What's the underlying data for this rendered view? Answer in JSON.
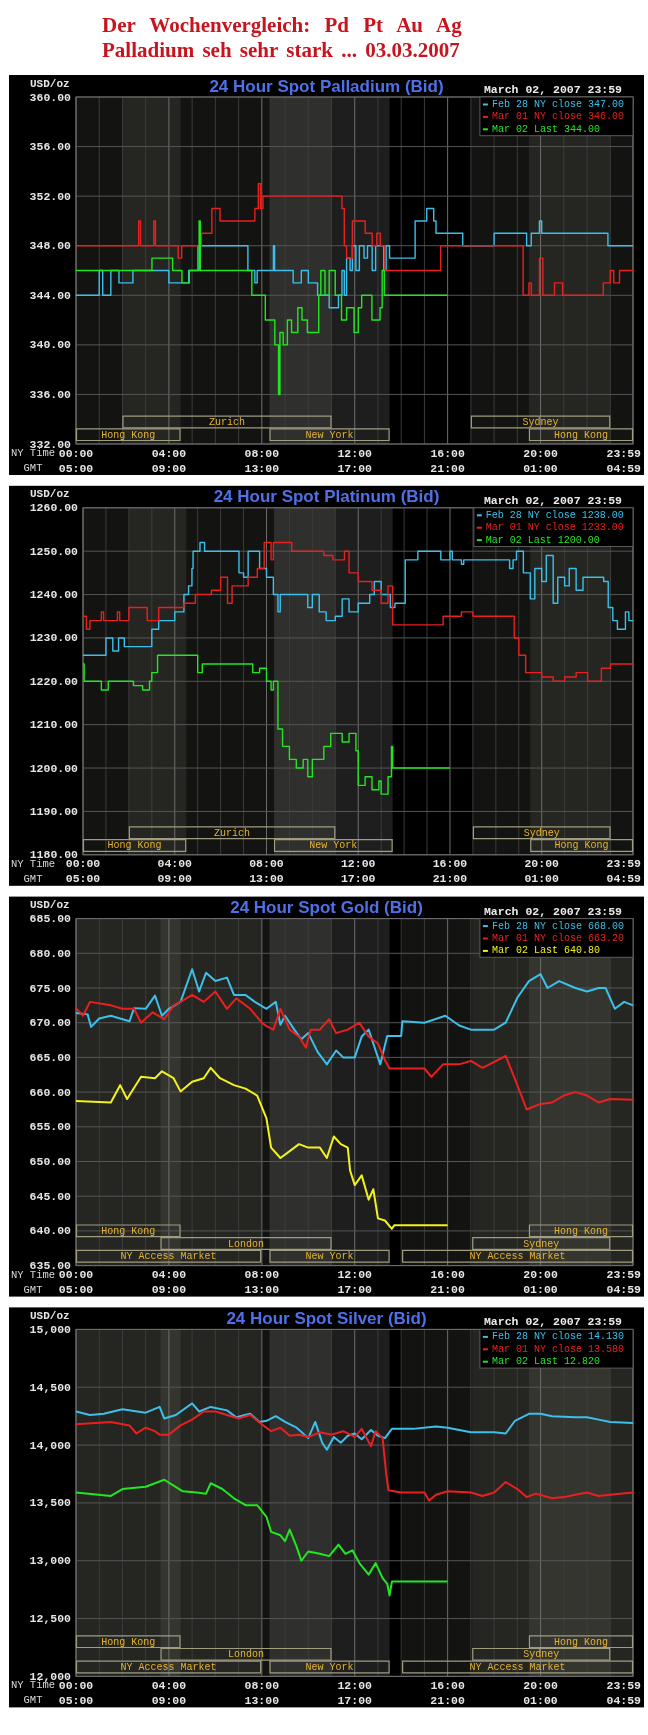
{
  "chart_data": [
    {
      "type": "other",
      "title": "Der Wochenvergleich: Pd Pt Au Ag",
      "subtitle": "Palladium seh sehr stark ... 03.03.2007"
    },
    {
      "type": "step",
      "title": "24 Hour Spot Palladium (Bid)",
      "subtitle": "March 02, 2007 23:59",
      "ylabel": "USD/oz",
      "xlabel": "NY Time",
      "x2label": "GMT",
      "xlim": [
        0,
        23.98
      ],
      "xticks": [
        {
          "value": 0,
          "label": "00:00"
        },
        {
          "value": 1,
          "label": null
        },
        {
          "value": 2,
          "label": null
        },
        {
          "value": 3,
          "label": null
        },
        {
          "value": 4,
          "label": "04:00"
        },
        {
          "value": 5,
          "label": null
        },
        {
          "value": 6,
          "label": null
        },
        {
          "value": 7,
          "label": null
        },
        {
          "value": 8,
          "label": "08:00"
        },
        {
          "value": 9,
          "label": null
        },
        {
          "value": 10,
          "label": null
        },
        {
          "value": 11,
          "label": null
        },
        {
          "value": 12,
          "label": "12:00"
        },
        {
          "value": 13,
          "label": null
        },
        {
          "value": 14,
          "label": null
        },
        {
          "value": 15,
          "label": null
        },
        {
          "value": 16,
          "label": "16:00"
        },
        {
          "value": 17,
          "label": null
        },
        {
          "value": 18,
          "label": null
        },
        {
          "value": 19,
          "label": null
        },
        {
          "value": 20,
          "label": "20:00"
        },
        {
          "value": 21,
          "label": null
        },
        {
          "value": 22,
          "label": null
        },
        {
          "value": 23,
          "label": null
        },
        {
          "value": 23.98,
          "label": "23:59"
        }
      ],
      "x2lim": [
        "2007-03-02T05:00",
        "2007-03-03T04:59"
      ],
      "x2ticks": [
        {
          "value": "2007-03-02T05:00",
          "label": "05:00"
        },
        {
          "value": "2007-03-02T09:00",
          "label": "09:00"
        },
        {
          "value": "2007-03-02T13:00",
          "label": "13:00"
        },
        {
          "value": "2007-03-02T17:00",
          "label": "17:00"
        },
        {
          "value": "2007-03-02T21:00",
          "label": "21:00"
        },
        {
          "value": "2007-03-03T01:00",
          "label": "01:00"
        },
        {
          "value": "2007-03-03T04:59",
          "label": "04:59"
        }
      ],
      "ylim": [
        332,
        360
      ],
      "yticks": [
        {
          "value": 332,
          "label": "332.00"
        },
        {
          "value": 336,
          "label": "336.00"
        },
        {
          "value": 340,
          "label": "340.00"
        },
        {
          "value": 344,
          "label": "344.00"
        },
        {
          "value": 348,
          "label": "348.00"
        },
        {
          "value": 352,
          "label": "352.00"
        },
        {
          "value": 356,
          "label": "356.00"
        },
        {
          "value": 360,
          "label": "360.00"
        }
      ],
      "grid": true,
      "legend": "top right",
      "bands": [
        {
          "axis": "x",
          "from": 0,
          "to": 4.5,
          "label": "Hong Kong",
          "color": "#131311"
        },
        {
          "axis": "x",
          "from": 2,
          "to": 11,
          "label": "Zurich",
          "color": "#131311"
        },
        {
          "axis": "x",
          "from": 8.33,
          "to": 13.5,
          "label": "New York",
          "color": "#1e1e1e"
        },
        {
          "axis": "x",
          "from": 19.5,
          "to": 23.98,
          "label": "Hong Kong",
          "color": "#131311"
        },
        {
          "axis": "x",
          "from": 17,
          "to": 23,
          "label": "Sydney",
          "color": "#131311"
        }
      ],
      "series": [
        {
          "name": "Feb 28 NY close 347.00",
          "color": "#3cc0ea",
          "x": [
            0,
            1.0,
            1.15,
            1.5,
            1.85,
            2.45,
            4.0,
            4.85,
            5.25,
            7.4,
            7.7,
            7.8,
            8.5,
            8.55,
            9.35,
            9.7,
            10.0,
            10.4,
            10.9,
            11.3,
            11.45,
            11.55,
            11.65,
            11.8,
            11.9,
            12.05,
            12.2,
            12.4,
            12.55,
            12.75,
            12.9,
            13.25,
            13.35,
            13.5,
            14.6,
            15.1,
            15.4,
            15.5,
            16.65,
            18.0,
            19.4,
            19.6,
            19.95,
            20.05,
            22.9,
            23.98
          ],
          "values": [
            344,
            346,
            344,
            346,
            345,
            346,
            345,
            346,
            348,
            346,
            345,
            346,
            348,
            346,
            345,
            346,
            345,
            344,
            343,
            344,
            346,
            344,
            347,
            346,
            348,
            346,
            348,
            347,
            348,
            346,
            348,
            346,
            348,
            347,
            350,
            351,
            350,
            349,
            348,
            349,
            348,
            349,
            350,
            349,
            348,
            348
          ]
        },
        {
          "name": "Mar 01 NY close 346.00",
          "color": "#e82020",
          "x": [
            0,
            2.7,
            2.78,
            3.35,
            3.42,
            4.4,
            4.55,
            5.4,
            5.85,
            6.2,
            7.7,
            7.85,
            7.95,
            8.05,
            11.45,
            11.55,
            11.65,
            11.9,
            12.45,
            12.75,
            12.95,
            13.1,
            13.3,
            15.7,
            19.25,
            19.5,
            19.6,
            19.95,
            20.1,
            20.6,
            20.95,
            22.7,
            23.0,
            23.15,
            23.4,
            23.98
          ],
          "values": [
            348,
            350,
            348,
            350,
            348,
            347,
            348,
            349,
            351,
            350,
            351,
            353,
            351,
            352,
            351,
            348,
            347,
            350,
            349,
            348,
            349,
            348,
            346,
            348,
            344,
            345,
            344,
            347,
            344,
            345,
            344,
            345,
            346,
            345,
            346,
            346
          ]
        },
        {
          "name": "Mar 02 Last 344.00",
          "color": "#22e622",
          "x": [
            0,
            3.27,
            4.16,
            4.56,
            4.88,
            5.3,
            5.35,
            7.57,
            8.15,
            8.56,
            8.72,
            8.78,
            8.92,
            9.1,
            9.28,
            9.55,
            9.73,
            9.96,
            10.45,
            10.54,
            10.72,
            10.9,
            11.16,
            11.43,
            11.65,
            11.97,
            12.15,
            12.3,
            12.74,
            13.09,
            13.18,
            13.27,
            16.0
          ],
          "values": [
            346,
            347,
            346,
            345,
            346,
            350,
            346,
            344,
            342,
            340,
            336,
            341,
            340,
            342,
            341,
            343,
            342,
            341,
            344,
            346,
            344,
            346,
            344,
            342,
            343,
            341,
            343,
            344,
            342,
            343,
            346,
            344,
            344
          ]
        }
      ]
    },
    {
      "type": "step",
      "title": "24 Hour Spot Platinum (Bid)",
      "subtitle": "March 02, 2007 23:59",
      "ylabel": "USD/oz",
      "xlabel": "NY Time",
      "x2label": "GMT",
      "xlim": [
        0,
        23.98
      ],
      "xticks": [
        {
          "value": 0,
          "label": "00:00"
        },
        {
          "value": 1,
          "label": null
        },
        {
          "value": 2,
          "label": null
        },
        {
          "value": 3,
          "label": null
        },
        {
          "value": 4,
          "label": "04:00"
        },
        {
          "value": 5,
          "label": null
        },
        {
          "value": 6,
          "label": null
        },
        {
          "value": 7,
          "label": null
        },
        {
          "value": 8,
          "label": "08:00"
        },
        {
          "value": 9,
          "label": null
        },
        {
          "value": 10,
          "label": null
        },
        {
          "value": 11,
          "label": null
        },
        {
          "value": 12,
          "label": "12:00"
        },
        {
          "value": 13,
          "label": null
        },
        {
          "value": 14,
          "label": null
        },
        {
          "value": 15,
          "label": null
        },
        {
          "value": 16,
          "label": "16:00"
        },
        {
          "value": 17,
          "label": null
        },
        {
          "value": 18,
          "label": null
        },
        {
          "value": 19,
          "label": null
        },
        {
          "value": 20,
          "label": "20:00"
        },
        {
          "value": 21,
          "label": null
        },
        {
          "value": 22,
          "label": null
        },
        {
          "value": 23,
          "label": null
        },
        {
          "value": 23.98,
          "label": "23:59"
        }
      ],
      "x2lim": [
        "2007-03-02T05:00",
        "2007-03-03T04:59"
      ],
      "x2ticks": [
        {
          "value": "2007-03-02T05:00",
          "label": "05:00"
        },
        {
          "value": "2007-03-02T09:00",
          "label": "09:00"
        },
        {
          "value": "2007-03-02T13:00",
          "label": "13:00"
        },
        {
          "value": "2007-03-02T17:00",
          "label": "17:00"
        },
        {
          "value": "2007-03-02T21:00",
          "label": "21:00"
        },
        {
          "value": "2007-03-03T01:00",
          "label": "01:00"
        },
        {
          "value": "2007-03-03T04:59",
          "label": "04:59"
        }
      ],
      "ylim": [
        1180,
        1260
      ],
      "yticks": [
        {
          "value": 1180,
          "label": "1180.00"
        },
        {
          "value": 1190,
          "label": "1190.00"
        },
        {
          "value": 1200,
          "label": "1200.00"
        },
        {
          "value": 1210,
          "label": "1210.00"
        },
        {
          "value": 1220,
          "label": "1220.00"
        },
        {
          "value": 1230,
          "label": "1230.00"
        },
        {
          "value": 1240,
          "label": "1240.00"
        },
        {
          "value": 1250,
          "label": "1250.00"
        },
        {
          "value": 1260,
          "label": "1260.00"
        }
      ],
      "grid": true,
      "legend": "top right",
      "bands": [
        {
          "axis": "x",
          "from": 0,
          "to": 4.5,
          "label": "Hong Kong",
          "color": "#131311"
        },
        {
          "axis": "x",
          "from": 2,
          "to": 11,
          "label": "Zurich",
          "color": "#131311"
        },
        {
          "axis": "x",
          "from": 8.33,
          "to": 13.5,
          "label": "New York",
          "color": "#1e1e1e"
        },
        {
          "axis": "x",
          "from": 19.5,
          "to": 23.98,
          "label": "Hong Kong",
          "color": "#131311"
        },
        {
          "axis": "x",
          "from": 17,
          "to": 23,
          "label": "Sydney",
          "color": "#131311"
        }
      ],
      "series": [
        {
          "name": "Feb 28 NY close 1238.00",
          "color": "#3cc0ea",
          "x": [
            0,
            1,
            1.3,
            1.55,
            1.8,
            3,
            3.3,
            4,
            4.4,
            4.6,
            4.75,
            4.8,
            5.1,
            5.3,
            6.8,
            7,
            7.2,
            7.7,
            8,
            8.3,
            8.5,
            8.6,
            9.8,
            10,
            10.3,
            10.6,
            11,
            11.3,
            11.6,
            12,
            12.5,
            12.7,
            13,
            13.4,
            13.6,
            14.05,
            14.6,
            15.6,
            16,
            16.1,
            16.5,
            16.6,
            18.6,
            18.75,
            18.9,
            19.2,
            19.5,
            19.7,
            20,
            20.2,
            20.5,
            20.7,
            21,
            21.2,
            21.5,
            21.8,
            22.7,
            22.9,
            23.1,
            23.3,
            23.65,
            23.8,
            23.98
          ],
          "values": [
            1226,
            1230,
            1227,
            1230,
            1228,
            1232,
            1234,
            1236,
            1240,
            1242,
            1246,
            1250,
            1252,
            1250,
            1245,
            1244,
            1250,
            1246,
            1244,
            1240,
            1236,
            1240,
            1237,
            1240,
            1236,
            1234,
            1235,
            1239,
            1236,
            1238,
            1240,
            1243,
            1240,
            1237,
            1238,
            1248,
            1250,
            1248,
            1250,
            1248,
            1247,
            1248,
            1246,
            1248,
            1250,
            1245,
            1239,
            1246,
            1243,
            1249,
            1238,
            1244,
            1242,
            1246,
            1241,
            1244,
            1243,
            1237,
            1234,
            1232,
            1236,
            1234,
            1234
          ]
        },
        {
          "name": "Mar 01 NY close 1233.00",
          "color": "#e82020",
          "x": [
            0,
            0.15,
            0.3,
            0.8,
            0.9,
            1.5,
            1.6,
            2,
            2.8,
            3.3,
            4.4,
            4.9,
            5.6,
            6,
            6.3,
            6.5,
            7.2,
            7.6,
            7.9,
            8.2,
            8.3,
            9.1,
            10.5,
            10.9,
            11.4,
            11.6,
            12,
            12.6,
            13,
            13.3,
            13.5,
            15.7,
            16.5,
            17,
            18.8,
            19,
            19.3,
            20,
            20.5,
            21,
            21.5,
            22,
            22.6,
            23,
            23.98
          ],
          "values": [
            1235,
            1232,
            1234,
            1236,
            1234,
            1236,
            1234,
            1237,
            1234,
            1237,
            1238,
            1240,
            1241,
            1244,
            1238,
            1242,
            1244,
            1246,
            1252,
            1248,
            1252,
            1250,
            1249,
            1248,
            1250,
            1245,
            1243,
            1241,
            1238,
            1242,
            1233,
            1235,
            1236,
            1235,
            1230,
            1226,
            1222,
            1221,
            1220,
            1221,
            1222,
            1220,
            1223,
            1224,
            1224
          ]
        },
        {
          "name": "Mar 02 Last 1200.00",
          "color": "#22e622",
          "x": [
            0,
            0.05,
            0.8,
            1.1,
            2.2,
            2.6,
            2.9,
            3,
            3.25,
            4.8,
            5,
            5.2,
            7.4,
            7.7,
            8,
            8.2,
            8.3,
            8.5,
            8.7,
            9,
            9.3,
            9.6,
            9.8,
            10,
            10.5,
            10.8,
            11.3,
            11.6,
            11.9,
            12,
            12.3,
            12.6,
            12.9,
            13,
            13.3,
            13.45,
            13.5,
            16
          ],
          "values": [
            1224,
            1220,
            1218,
            1220,
            1219,
            1218,
            1220,
            1222,
            1226,
            1226,
            1222,
            1224,
            1222,
            1223,
            1220,
            1218,
            1220,
            1209,
            1205,
            1202,
            1200,
            1202,
            1198,
            1202,
            1205,
            1208,
            1206,
            1208,
            1204,
            1196,
            1198,
            1195,
            1197,
            1194,
            1198,
            1205,
            1200,
            1200
          ]
        }
      ]
    },
    {
      "type": "line",
      "title": "24 Hour Spot Gold (Bid)",
      "subtitle": "March 02, 2007 23:59",
      "ylabel": "USD/oz",
      "xlabel": "NY Time",
      "x2label": "GMT",
      "xlim": [
        0,
        23.98
      ],
      "xticks": [
        {
          "value": 0,
          "label": "00:00"
        },
        {
          "value": 1,
          "label": null
        },
        {
          "value": 2,
          "label": null
        },
        {
          "value": 3,
          "label": null
        },
        {
          "value": 4,
          "label": "04:00"
        },
        {
          "value": 5,
          "label": null
        },
        {
          "value": 6,
          "label": null
        },
        {
          "value": 7,
          "label": null
        },
        {
          "value": 8,
          "label": "08:00"
        },
        {
          "value": 9,
          "label": null
        },
        {
          "value": 10,
          "label": null
        },
        {
          "value": 11,
          "label": null
        },
        {
          "value": 12,
          "label": "12:00"
        },
        {
          "value": 13,
          "label": null
        },
        {
          "value": 14,
          "label": null
        },
        {
          "value": 15,
          "label": null
        },
        {
          "value": 16,
          "label": "16:00"
        },
        {
          "value": 17,
          "label": null
        },
        {
          "value": 18,
          "label": null
        },
        {
          "value": 19,
          "label": null
        },
        {
          "value": 20,
          "label": "20:00"
        },
        {
          "value": 21,
          "label": null
        },
        {
          "value": 22,
          "label": null
        },
        {
          "value": 23,
          "label": null
        },
        {
          "value": 23.98,
          "label": "23:59"
        }
      ],
      "x2lim": [
        "2007-03-02T05:00",
        "2007-03-03T04:59"
      ],
      "x2ticks": [
        {
          "value": "2007-03-02T05:00",
          "label": "05:00"
        },
        {
          "value": "2007-03-02T09:00",
          "label": "09:00"
        },
        {
          "value": "2007-03-02T13:00",
          "label": "13:00"
        },
        {
          "value": "2007-03-02T17:00",
          "label": "17:00"
        },
        {
          "value": "2007-03-02T21:00",
          "label": "21:00"
        },
        {
          "value": "2007-03-03T01:00",
          "label": "01:00"
        },
        {
          "value": "2007-03-03T04:59",
          "label": "04:59"
        }
      ],
      "ylim": [
        635,
        685
      ],
      "yticks": [
        {
          "value": 635,
          "label": "635.00"
        },
        {
          "value": 640,
          "label": "640.00"
        },
        {
          "value": 645,
          "label": "645.00"
        },
        {
          "value": 650,
          "label": "650.00"
        },
        {
          "value": 655,
          "label": "655.00"
        },
        {
          "value": 660,
          "label": "660.00"
        },
        {
          "value": 665,
          "label": "665.00"
        },
        {
          "value": 670,
          "label": "670.00"
        },
        {
          "value": 675,
          "label": "675.00"
        },
        {
          "value": 680,
          "label": "680.00"
        },
        {
          "value": 685,
          "label": "685.00"
        }
      ],
      "grid": true,
      "legend": "top right",
      "bands": [
        {
          "axis": "x",
          "from": 0,
          "to": 7.97,
          "label": "NY Access Market",
          "color": "#131311"
        },
        {
          "axis": "x",
          "from": 8.33,
          "to": 13.5,
          "label": "New York",
          "color": "#1e1e1e"
        },
        {
          "axis": "x",
          "from": 14.04,
          "to": 23.98,
          "label": "NY Access Market",
          "color": "#131311"
        },
        {
          "axis": "x",
          "from": 3.64,
          "to": 11,
          "label": "London",
          "color": "#131311"
        },
        {
          "axis": "x",
          "from": 17.06,
          "to": 23,
          "label": "Sydney",
          "color": "#131311"
        },
        {
          "axis": "x",
          "from": 0,
          "to": 4.5,
          "label": "Hong Kong",
          "color": "#131311"
        },
        {
          "axis": "x",
          "from": 19.5,
          "to": 23.98,
          "label": "Hong Kong",
          "color": "#131311"
        }
      ],
      "series": [
        {
          "name": "Feb 28 NY close 668.00",
          "color": "#3cc0ea",
          "x": [
            0,
            0.5,
            0.65,
            1,
            1.5,
            2.3,
            2.5,
            3,
            3.4,
            3.7,
            4,
            4.5,
            5,
            5.3,
            5.6,
            6,
            6.5,
            6.8,
            7.3,
            7.7,
            8.2,
            8.6,
            8.8,
            9,
            9.4,
            9.7,
            10,
            10.4,
            10.8,
            11.2,
            11.5,
            12,
            12.3,
            12.6,
            12.9,
            13.1,
            13.4,
            14,
            14.05,
            15,
            15.9,
            16.5,
            17,
            18,
            18.5,
            19,
            19.5,
            20,
            20.3,
            20.8,
            21.5,
            22,
            22.5,
            22.8,
            23.2,
            23.6,
            23.98
          ],
          "values": [
            671.4,
            671.2,
            669.4,
            670.6,
            671,
            670.2,
            672.1,
            672,
            673.9,
            671,
            672,
            673,
            677.7,
            674.5,
            677.2,
            676,
            676.5,
            674,
            674,
            673,
            672,
            673,
            669.7,
            671,
            669,
            667.6,
            668.5,
            665.8,
            664,
            666,
            665,
            665,
            668,
            669,
            666,
            664,
            668.1,
            668.1,
            670.2,
            670,
            671,
            669.6,
            669,
            669,
            670,
            673.6,
            676,
            677,
            675,
            676,
            675,
            674.5,
            675,
            675,
            672,
            673,
            672.5
          ]
        },
        {
          "name": "Mar 01 NY close 663.20",
          "color": "#e82020",
          "x": [
            0,
            0.3,
            0.6,
            1.5,
            2,
            2.5,
            2.8,
            3.3,
            3.8,
            4.2,
            4.5,
            5,
            5.5,
            6,
            6.5,
            6.9,
            7.5,
            8,
            8.2,
            8.5,
            8.8,
            9.2,
            9.6,
            9.9,
            10.1,
            10.5,
            10.9,
            11.2,
            11.7,
            12.2,
            12.6,
            13,
            13.3,
            13.5,
            15,
            15.3,
            15.8,
            16.5,
            17,
            17.5,
            17.8,
            18.5,
            19,
            19.4,
            20,
            20.5,
            21,
            21.5,
            22,
            22.5,
            23,
            23.98
          ],
          "values": [
            672.1,
            671,
            673,
            672.5,
            672,
            672,
            670,
            671.5,
            670.5,
            672.5,
            673,
            674,
            673,
            674.5,
            672,
            673.5,
            672,
            670,
            669.5,
            669,
            672,
            669,
            668,
            666.4,
            669,
            669,
            670.5,
            668.5,
            669,
            670,
            668,
            667,
            664.6,
            663.4,
            663.4,
            662.2,
            664,
            664,
            664.5,
            663.5,
            664,
            665.2,
            661,
            657.5,
            658.3,
            658.5,
            659.5,
            660,
            659.5,
            658.5,
            659,
            658.9
          ]
        },
        {
          "name": "Mar 02 Last 640.80",
          "color": "#f2f21e",
          "x": [
            0,
            1.5,
            1.9,
            2.2,
            2.8,
            3.4,
            3.7,
            4.2,
            4.5,
            5,
            5.5,
            5.8,
            6.2,
            6.8,
            7.3,
            7.8,
            8.2,
            8.4,
            8.8,
            9.2,
            9.6,
            10,
            10.5,
            10.8,
            11.1,
            11.4,
            11.7,
            11.8,
            12,
            12.3,
            12.6,
            12.8,
            13,
            13.3,
            13.6,
            13.7,
            16
          ],
          "values": [
            658.7,
            658.5,
            661,
            659,
            662.2,
            662,
            663,
            662,
            660.1,
            661.5,
            662,
            663.5,
            662,
            661,
            660.5,
            659.5,
            656.2,
            652,
            650.5,
            651.5,
            652.5,
            652,
            652,
            650.5,
            653.6,
            652.5,
            652,
            648.7,
            646.6,
            648,
            644.5,
            646,
            641.8,
            641.5,
            640.3,
            640.8,
            640.8
          ]
        }
      ]
    },
    {
      "type": "line",
      "title": "24 Hour Spot Silver (Bid)",
      "subtitle": "March 02, 2007 23:59",
      "ylabel": "USD/oz",
      "xlabel": "NY Time",
      "x2label": "GMT",
      "xlim": [
        0,
        23.98
      ],
      "xticks": [
        {
          "value": 0,
          "label": "00:00"
        },
        {
          "value": 1,
          "label": null
        },
        {
          "value": 2,
          "label": null
        },
        {
          "value": 3,
          "label": null
        },
        {
          "value": 4,
          "label": "04:00"
        },
        {
          "value": 5,
          "label": null
        },
        {
          "value": 6,
          "label": null
        },
        {
          "value": 7,
          "label": null
        },
        {
          "value": 8,
          "label": "08:00"
        },
        {
          "value": 9,
          "label": null
        },
        {
          "value": 10,
          "label": null
        },
        {
          "value": 11,
          "label": null
        },
        {
          "value": 12,
          "label": "12:00"
        },
        {
          "value": 13,
          "label": null
        },
        {
          "value": 14,
          "label": null
        },
        {
          "value": 15,
          "label": null
        },
        {
          "value": 16,
          "label": "16:00"
        },
        {
          "value": 17,
          "label": null
        },
        {
          "value": 18,
          "label": null
        },
        {
          "value": 19,
          "label": null
        },
        {
          "value": 20,
          "label": "20:00"
        },
        {
          "value": 21,
          "label": null
        },
        {
          "value": 22,
          "label": null
        },
        {
          "value": 23,
          "label": null
        },
        {
          "value": 23.98,
          "label": "23:59"
        }
      ],
      "x2lim": [
        "2007-03-02T05:00",
        "2007-03-03T04:59"
      ],
      "x2ticks": [
        {
          "value": "2007-03-02T05:00",
          "label": "05:00"
        },
        {
          "value": "2007-03-02T09:00",
          "label": "09:00"
        },
        {
          "value": "2007-03-02T13:00",
          "label": "13:00"
        },
        {
          "value": "2007-03-02T17:00",
          "label": "17:00"
        },
        {
          "value": "2007-03-02T21:00",
          "label": "21:00"
        },
        {
          "value": "2007-03-03T01:00",
          "label": "01:00"
        },
        {
          "value": "2007-03-03T04:59",
          "label": "04:59"
        }
      ],
      "ylim": [
        12000,
        15000
      ],
      "yticks": [
        {
          "value": 12000,
          "label": "12,000"
        },
        {
          "value": 12500,
          "label": "12,500"
        },
        {
          "value": 13000,
          "label": "13,000"
        },
        {
          "value": 13500,
          "label": "13,500"
        },
        {
          "value": 14000,
          "label": "14,000"
        },
        {
          "value": 14500,
          "label": "14,500"
        },
        {
          "value": 15000,
          "label": "15,000"
        }
      ],
      "grid": true,
      "legend": "top right",
      "bands": [
        {
          "axis": "x",
          "from": 0,
          "to": 7.97,
          "label": "NY Access Market",
          "color": "#131311"
        },
        {
          "axis": "x",
          "from": 8.33,
          "to": 13.5,
          "label": "New York",
          "color": "#1e1e1e"
        },
        {
          "axis": "x",
          "from": 14.04,
          "to": 23.98,
          "label": "NY Access Market",
          "color": "#131311"
        },
        {
          "axis": "x",
          "from": 3.64,
          "to": 11,
          "label": "London",
          "color": "#131311"
        },
        {
          "axis": "x",
          "from": 17.06,
          "to": 23,
          "label": "Sydney",
          "color": "#131311"
        },
        {
          "axis": "x",
          "from": 0,
          "to": 4.5,
          "label": "Hong Kong",
          "color": "#131311"
        },
        {
          "axis": "x",
          "from": 19.5,
          "to": 23.98,
          "label": "Hong Kong",
          "color": "#131311"
        }
      ],
      "series": [
        {
          "name": "Feb 28 NY close 14.130",
          "color": "#3cc0ea",
          "x": [
            0,
            0.6,
            1.2,
            2,
            3,
            3.6,
            3.8,
            4.3,
            5,
            5.3,
            5.8,
            6.5,
            6.9,
            7.5,
            7.9,
            8.2,
            8.6,
            9,
            9.5,
            10,
            10.3,
            10.6,
            10.8,
            11.1,
            11.4,
            11.7,
            12,
            12.3,
            12.7,
            13,
            13.3,
            13.6,
            14.5,
            15.5,
            16,
            16.5,
            17,
            18,
            18.5,
            18.9,
            19.5,
            20,
            20.5,
            21.5,
            22,
            22.5,
            23,
            23.98
          ],
          "values": [
            14290,
            14260,
            14270,
            14310,
            14280,
            14330,
            14230,
            14260,
            14360,
            14290,
            14330,
            14300,
            14240,
            14270,
            14200,
            14210,
            14250,
            14200,
            14150,
            14060,
            14200,
            14020,
            13960,
            14070,
            14020,
            14080,
            14100,
            14050,
            14130,
            14080,
            14060,
            14140,
            14140,
            14160,
            14150,
            14130,
            14110,
            14110,
            14100,
            14210,
            14270,
            14270,
            14250,
            14240,
            14240,
            14220,
            14200,
            14190
          ]
        },
        {
          "name": "Mar 01 NY close 13.580",
          "color": "#e82020",
          "x": [
            0,
            1.5,
            2.3,
            2.6,
            3,
            3.4,
            3.6,
            4,
            4.5,
            5,
            5.5,
            6,
            6.5,
            7,
            7.5,
            8,
            8.4,
            8.8,
            9.2,
            9.6,
            10,
            10.5,
            11,
            11.5,
            12,
            12.3,
            12.7,
            12.9,
            13.2,
            13.35,
            13.45,
            14,
            15,
            15.2,
            15.5,
            16,
            17,
            17.5,
            18,
            18.5,
            19,
            19.4,
            19.8,
            20.5,
            21,
            21.5,
            22,
            22.5,
            23,
            23.98
          ],
          "values": [
            14180,
            14200,
            14170,
            14100,
            14150,
            14120,
            14090,
            14090,
            14170,
            14220,
            14290,
            14290,
            14260,
            14230,
            14260,
            14180,
            14120,
            14150,
            14080,
            14090,
            14070,
            14110,
            14090,
            14120,
            14070,
            14140,
            13990,
            14120,
            14060,
            13760,
            13610,
            13590,
            13590,
            13520,
            13570,
            13600,
            13590,
            13560,
            13590,
            13680,
            13620,
            13550,
            13580,
            13540,
            13550,
            13570,
            13590,
            13560,
            13570,
            13590
          ]
        },
        {
          "name": "Mar 02 Last 12.820",
          "color": "#22e622",
          "x": [
            0,
            1.5,
            2,
            3,
            3.8,
            4.2,
            4.6,
            5.2,
            5.6,
            5.8,
            6.3,
            6.8,
            7.3,
            7.8,
            8.2,
            8.4,
            8.8,
            9,
            9.2,
            9.5,
            9.7,
            10,
            10.5,
            10.9,
            11.3,
            11.6,
            11.9,
            12.2,
            12.6,
            12.9,
            13.2,
            13.4,
            13.5,
            13.6,
            16
          ],
          "values": [
            13590,
            13560,
            13620,
            13640,
            13700,
            13650,
            13600,
            13590,
            13580,
            13670,
            13620,
            13540,
            13480,
            13480,
            13380,
            13250,
            13220,
            13170,
            13270,
            13120,
            13000,
            13080,
            13060,
            13040,
            13140,
            13060,
            13090,
            12980,
            12880,
            12980,
            12850,
            12800,
            12700,
            12820,
            12820
          ]
        }
      ]
    }
  ]
}
